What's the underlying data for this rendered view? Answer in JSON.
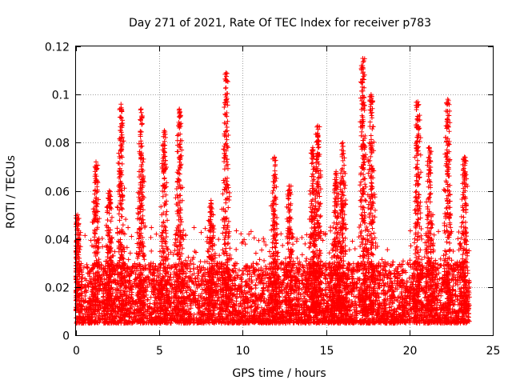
{
  "chart_data": {
    "type": "scatter",
    "title": "Day 271 of 2021, Rate Of TEC Index for receiver p783",
    "xlabel": "GPS time / hours",
    "ylabel": "ROTI / TECUs",
    "xlim": [
      0,
      25
    ],
    "ylim": [
      0,
      0.12
    ],
    "xticks": [
      0,
      5,
      10,
      15,
      20,
      25
    ],
    "xtick_labels": [
      "0",
      "5",
      "10",
      "15",
      "20",
      "25"
    ],
    "yticks": [
      0,
      0.02,
      0.04,
      0.06,
      0.08,
      0.1,
      0.12
    ],
    "ytick_labels": [
      "0",
      "0.02",
      "0.04",
      "0.06",
      "0.08",
      "0.1",
      "0.12"
    ],
    "grid": true,
    "marker": "+",
    "color": "#ff0000",
    "x_range_data": [
      0,
      23.6
    ],
    "baseline_band": [
      0.005,
      0.03
    ],
    "peaks": [
      {
        "x": 0.1,
        "y": 0.05
      },
      {
        "x": 1.2,
        "y": 0.072
      },
      {
        "x": 2.0,
        "y": 0.06
      },
      {
        "x": 2.7,
        "y": 0.096
      },
      {
        "x": 3.9,
        "y": 0.094
      },
      {
        "x": 5.3,
        "y": 0.085
      },
      {
        "x": 6.2,
        "y": 0.094
      },
      {
        "x": 8.1,
        "y": 0.056
      },
      {
        "x": 9.0,
        "y": 0.109
      },
      {
        "x": 11.9,
        "y": 0.074
      },
      {
        "x": 12.8,
        "y": 0.062
      },
      {
        "x": 14.2,
        "y": 0.078
      },
      {
        "x": 14.5,
        "y": 0.087
      },
      {
        "x": 15.6,
        "y": 0.068
      },
      {
        "x": 16.0,
        "y": 0.08
      },
      {
        "x": 17.2,
        "y": 0.115
      },
      {
        "x": 17.7,
        "y": 0.1
      },
      {
        "x": 20.5,
        "y": 0.097
      },
      {
        "x": 21.2,
        "y": 0.078
      },
      {
        "x": 22.3,
        "y": 0.098
      },
      {
        "x": 23.3,
        "y": 0.074
      }
    ]
  }
}
